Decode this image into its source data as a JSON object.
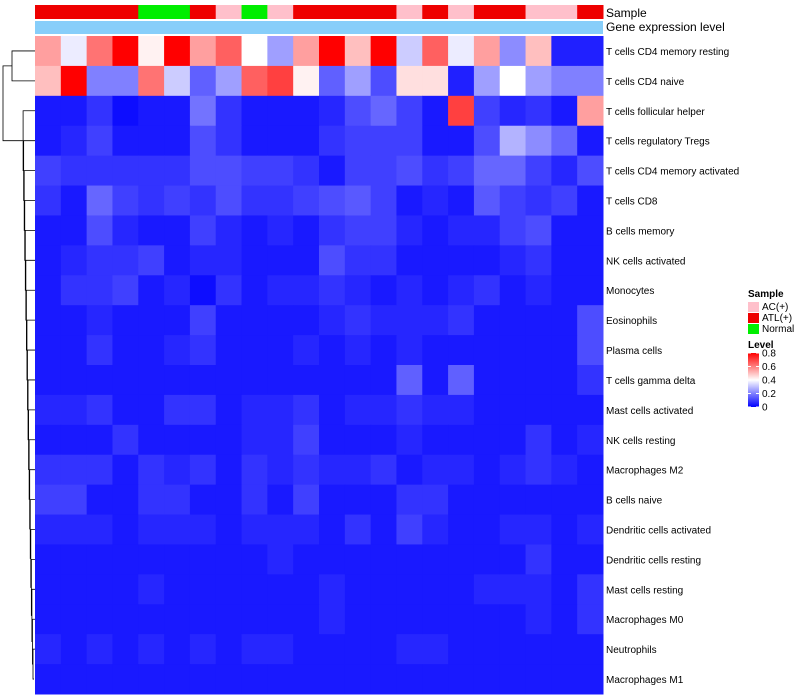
{
  "chart_data": {
    "type": "heatmap",
    "title": "",
    "annotation_labels": {
      "sample": "Sample",
      "gene_expression": "Gene expression level"
    },
    "sample_groups": [
      "ATL(+)",
      "ATL(+)",
      "ATL(+)",
      "ATL(+)",
      "Normal",
      "Normal",
      "ATL(+)",
      "AC(+)",
      "Normal",
      "AC(+)",
      "ATL(+)",
      "ATL(+)",
      "ATL(+)",
      "ATL(+)",
      "AC(+)",
      "ATL(+)",
      "AC(+)",
      "ATL(+)",
      "ATL(+)",
      "AC(+)",
      "AC(+)",
      "ATL(+)"
    ],
    "rows": [
      "T cells CD4 memory resting",
      "T cells CD4 naive",
      "T cells follicular helper",
      "T cells regulatory  Tregs",
      "T cells CD4 memory activated",
      "T cells CD8",
      "B cells memory",
      "NK cells activated",
      "Monocytes",
      "Eosinophils",
      "Plasma cells",
      "T cells gamma delta",
      "Mast cells activated",
      "NK cells resting",
      "Macrophages M2",
      "B cells naive",
      "Dendritic cells activated",
      "Dendritic cells resting",
      "Mast cells resting",
      "Macrophages M0",
      "Neutrophils",
      "Macrophages M1"
    ],
    "values": [
      [
        0.55,
        0.37,
        0.62,
        0.8,
        0.42,
        0.8,
        0.55,
        0.65,
        0.4,
        0.25,
        0.55,
        0.8,
        0.5,
        0.8,
        0.32,
        0.65,
        0.37,
        0.55,
        0.22,
        0.5,
        0.05,
        0.05
      ],
      [
        0.5,
        0.8,
        0.2,
        0.2,
        0.62,
        0.32,
        0.15,
        0.25,
        0.65,
        0.7,
        0.42,
        0.15,
        0.25,
        0.12,
        0.45,
        0.45,
        0.05,
        0.25,
        0.4,
        0.25,
        0.2,
        0.2
      ],
      [
        0.04,
        0.04,
        0.08,
        0.02,
        0.04,
        0.04,
        0.18,
        0.08,
        0.04,
        0.04,
        0.04,
        0.06,
        0.12,
        0.16,
        0.1,
        0.04,
        0.7,
        0.1,
        0.06,
        0.08,
        0.04,
        0.55
      ],
      [
        0.04,
        0.06,
        0.1,
        0.04,
        0.04,
        0.04,
        0.12,
        0.08,
        0.04,
        0.04,
        0.04,
        0.08,
        0.1,
        0.1,
        0.1,
        0.04,
        0.04,
        0.12,
        0.28,
        0.22,
        0.16,
        0.04
      ],
      [
        0.1,
        0.08,
        0.08,
        0.08,
        0.08,
        0.08,
        0.12,
        0.12,
        0.1,
        0.1,
        0.08,
        0.04,
        0.1,
        0.1,
        0.12,
        0.08,
        0.1,
        0.16,
        0.16,
        0.1,
        0.06,
        0.12
      ],
      [
        0.08,
        0.04,
        0.16,
        0.1,
        0.08,
        0.1,
        0.08,
        0.12,
        0.08,
        0.08,
        0.1,
        0.12,
        0.14,
        0.1,
        0.04,
        0.06,
        0.04,
        0.14,
        0.1,
        0.08,
        0.1,
        0.04
      ],
      [
        0.04,
        0.04,
        0.12,
        0.06,
        0.04,
        0.04,
        0.1,
        0.06,
        0.04,
        0.06,
        0.04,
        0.08,
        0.1,
        0.1,
        0.06,
        0.04,
        0.06,
        0.06,
        0.1,
        0.12,
        0.04,
        0.04
      ],
      [
        0.04,
        0.06,
        0.08,
        0.08,
        0.1,
        0.04,
        0.06,
        0.06,
        0.04,
        0.04,
        0.04,
        0.12,
        0.08,
        0.08,
        0.04,
        0.04,
        0.04,
        0.04,
        0.06,
        0.08,
        0.04,
        0.04
      ],
      [
        0.04,
        0.08,
        0.08,
        0.1,
        0.04,
        0.06,
        0.02,
        0.08,
        0.04,
        0.06,
        0.06,
        0.08,
        0.06,
        0.04,
        0.06,
        0.04,
        0.06,
        0.08,
        0.04,
        0.06,
        0.04,
        0.04
      ],
      [
        0.04,
        0.04,
        0.06,
        0.04,
        0.04,
        0.04,
        0.1,
        0.04,
        0.04,
        0.04,
        0.04,
        0.06,
        0.08,
        0.06,
        0.06,
        0.06,
        0.08,
        0.04,
        0.04,
        0.04,
        0.04,
        0.12
      ],
      [
        0.04,
        0.04,
        0.08,
        0.04,
        0.04,
        0.06,
        0.08,
        0.04,
        0.04,
        0.04,
        0.06,
        0.04,
        0.06,
        0.04,
        0.06,
        0.04,
        0.04,
        0.04,
        0.04,
        0.04,
        0.04,
        0.12
      ],
      [
        0.04,
        0.04,
        0.04,
        0.04,
        0.04,
        0.04,
        0.04,
        0.04,
        0.04,
        0.04,
        0.04,
        0.04,
        0.04,
        0.04,
        0.15,
        0.04,
        0.15,
        0.04,
        0.04,
        0.04,
        0.04,
        0.08
      ],
      [
        0.06,
        0.06,
        0.08,
        0.04,
        0.04,
        0.08,
        0.08,
        0.04,
        0.06,
        0.06,
        0.08,
        0.04,
        0.06,
        0.06,
        0.08,
        0.06,
        0.06,
        0.04,
        0.04,
        0.04,
        0.04,
        0.04
      ],
      [
        0.04,
        0.04,
        0.04,
        0.08,
        0.04,
        0.04,
        0.04,
        0.04,
        0.06,
        0.06,
        0.1,
        0.04,
        0.04,
        0.04,
        0.06,
        0.04,
        0.04,
        0.04,
        0.04,
        0.08,
        0.04,
        0.06
      ],
      [
        0.08,
        0.08,
        0.08,
        0.04,
        0.08,
        0.06,
        0.08,
        0.04,
        0.08,
        0.06,
        0.08,
        0.06,
        0.06,
        0.08,
        0.04,
        0.06,
        0.06,
        0.04,
        0.06,
        0.08,
        0.06,
        0.04
      ],
      [
        0.1,
        0.1,
        0.04,
        0.04,
        0.08,
        0.08,
        0.04,
        0.04,
        0.08,
        0.04,
        0.1,
        0.04,
        0.04,
        0.04,
        0.08,
        0.08,
        0.04,
        0.04,
        0.04,
        0.04,
        0.04,
        0.04
      ],
      [
        0.06,
        0.06,
        0.06,
        0.04,
        0.06,
        0.06,
        0.06,
        0.04,
        0.06,
        0.06,
        0.06,
        0.04,
        0.08,
        0.04,
        0.1,
        0.06,
        0.04,
        0.04,
        0.06,
        0.06,
        0.04,
        0.06
      ],
      [
        0.04,
        0.04,
        0.04,
        0.04,
        0.04,
        0.04,
        0.04,
        0.04,
        0.04,
        0.06,
        0.04,
        0.04,
        0.04,
        0.04,
        0.04,
        0.04,
        0.04,
        0.04,
        0.04,
        0.08,
        0.04,
        0.04
      ],
      [
        0.04,
        0.04,
        0.04,
        0.04,
        0.06,
        0.04,
        0.04,
        0.04,
        0.04,
        0.04,
        0.04,
        0.06,
        0.04,
        0.04,
        0.04,
        0.04,
        0.04,
        0.06,
        0.06,
        0.06,
        0.04,
        0.08
      ],
      [
        0.04,
        0.04,
        0.04,
        0.04,
        0.04,
        0.04,
        0.04,
        0.04,
        0.04,
        0.04,
        0.04,
        0.06,
        0.04,
        0.04,
        0.04,
        0.04,
        0.04,
        0.04,
        0.04,
        0.06,
        0.04,
        0.08
      ],
      [
        0.06,
        0.04,
        0.06,
        0.04,
        0.06,
        0.04,
        0.06,
        0.04,
        0.06,
        0.06,
        0.04,
        0.04,
        0.04,
        0.04,
        0.06,
        0.06,
        0.04,
        0.04,
        0.04,
        0.04,
        0.04,
        0.04
      ],
      [
        0.04,
        0.04,
        0.04,
        0.04,
        0.04,
        0.04,
        0.04,
        0.04,
        0.04,
        0.04,
        0.04,
        0.04,
        0.04,
        0.04,
        0.04,
        0.04,
        0.04,
        0.04,
        0.04,
        0.04,
        0.04,
        0.04
      ]
    ],
    "legend": {
      "sample_title": "Sample",
      "sample_entries": [
        {
          "label": "AC(+)",
          "color": "#FFC0CB"
        },
        {
          "label": "ATL(+)",
          "color": "#EE0000"
        },
        {
          "label": "Normal",
          "color": "#00EE00"
        }
      ],
      "level_title": "Level",
      "level_ticks": [
        "0.8",
        "0.6",
        "0.4",
        "0.2",
        "0"
      ],
      "level_range": [
        0,
        0.8
      ]
    },
    "colors": {
      "low": "#0000FF",
      "mid": "#FFFFFF",
      "high": "#FF0000",
      "gene_expression_bar": "#87CEFA"
    }
  }
}
